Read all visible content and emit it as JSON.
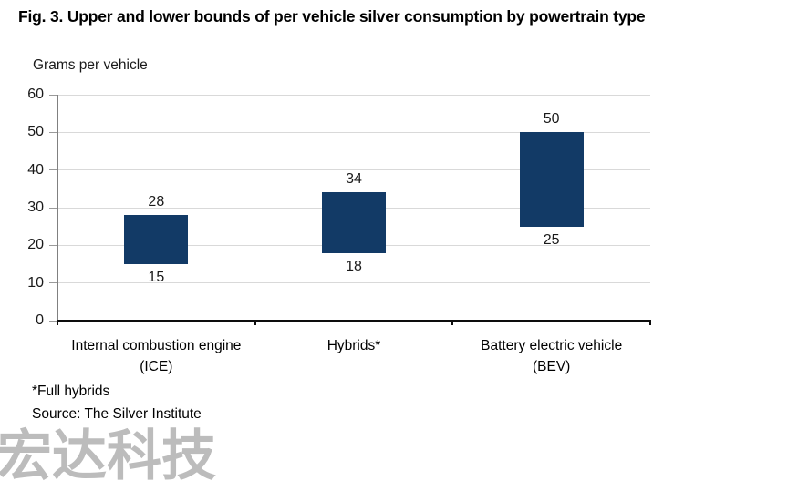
{
  "figure": {
    "title": "Fig. 3. Upper and lower bounds of per vehicle silver consumption by powertrain type",
    "axis_title": "Grams per vehicle",
    "footnote": "*Full hybrids",
    "source": "Source: The Silver Institute",
    "watermark": "宏达科技"
  },
  "chart_data": {
    "type": "bar",
    "subtype": "floating-range-bar",
    "title": "Fig. 3. Upper and lower bounds of per vehicle silver consumption by powertrain type",
    "ylabel": "Grams per vehicle",
    "xlabel": "",
    "categories": [
      "Internal combustion engine (ICE)",
      "Hybrids*",
      "Battery electric vehicle (BEV)"
    ],
    "series": [
      {
        "name": "lower bound",
        "values": [
          15,
          18,
          25
        ]
      },
      {
        "name": "upper bound",
        "values": [
          28,
          34,
          50
        ]
      }
    ],
    "ylim": [
      0,
      60
    ],
    "ytick_interval": 10,
    "grid": true,
    "legend": false,
    "data_labels": true,
    "colors": {
      "bar": "#123a66",
      "gridline": "#d9d9d9",
      "y_axis": "#808080",
      "x_axis": "#0d0d0d",
      "text": "#1a1a1a"
    }
  }
}
